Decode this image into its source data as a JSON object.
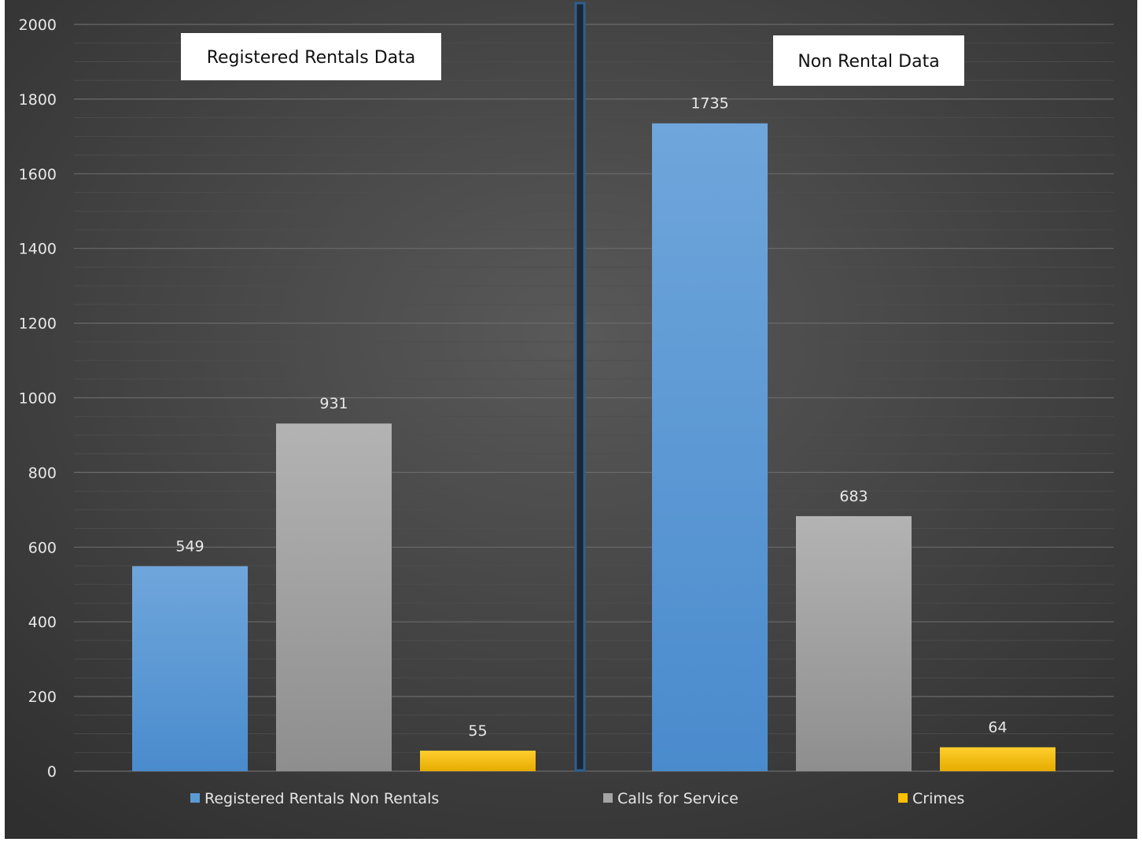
{
  "chart_data": {
    "type": "bar",
    "y_ticks": [
      0,
      200,
      400,
      600,
      800,
      1000,
      1200,
      1400,
      1600,
      1800,
      2000
    ],
    "ylim": [
      0,
      2000
    ],
    "grid": true,
    "legend_position": "bottom",
    "groups": [
      {
        "label": "Registered Rentals Data",
        "values": [
          549,
          931,
          55
        ]
      },
      {
        "label": "Non Rental Data",
        "values": [
          1735,
          683,
          64
        ]
      }
    ],
    "series": [
      {
        "name": "Registered Rentals Non Rentals",
        "color": "#5b9bd5"
      },
      {
        "name": "Calls for Service",
        "color": "#a5a5a5"
      },
      {
        "name": "Crimes",
        "color": "#ffc000"
      }
    ],
    "divider_color": "#2e5f8f"
  }
}
